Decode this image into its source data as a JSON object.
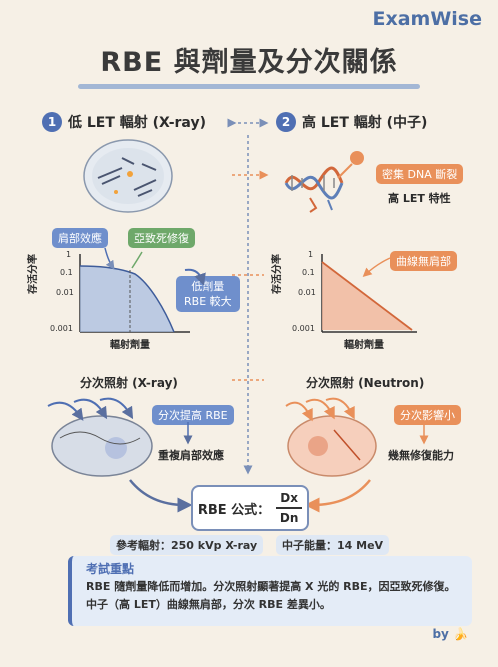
{
  "brand": "ExamWise",
  "title": "RBE 與劑量及分次關係",
  "left_section": {
    "number": "1",
    "heading": "低 LET 輻射 (X-ray)",
    "tag_shoulder": "肩部效應",
    "tag_sublethal": "亞致死修復",
    "tag_result_line1": "低劑量",
    "tag_result_line2": "RBE 較大",
    "chart": {
      "ylabel": "存活分率",
      "xlabel": "輻射劑量",
      "yticks": [
        "1",
        "0.1",
        "0.01",
        "0.001"
      ]
    },
    "fraction_title": "分次照射 (X-ray)",
    "fraction_tag": "分次提高 RBE",
    "fraction_effect": "重複肩部效應"
  },
  "right_section": {
    "number": "2",
    "heading": "高 LET 輻射 (中子)",
    "tag_dna": "密集 DNA 斷裂",
    "tag_characteristic": "高 LET 特性",
    "tag_curve": "曲線無肩部",
    "chart": {
      "ylabel": "存活分率",
      "xlabel": "輻射劑量",
      "yticks": [
        "1",
        "0.1",
        "0.01",
        "0.001"
      ]
    },
    "fraction_title": "分次照射 (Neutron)",
    "fraction_tag": "分次影響小",
    "fraction_effect": "幾無修復能力"
  },
  "formula": {
    "label": "RBE 公式：",
    "numerator": "Dx",
    "denominator": "Dn"
  },
  "reference_left": "參考輻射：250 kVp X-ray",
  "reference_right": "中子能量：14 MeV",
  "exam": {
    "title": "考試重點",
    "body": "RBE 隨劑量降低而增加。分次照射顯著提高 X 光的 RBE，因亞致死修復。中子（高 LET）曲線無肩部，分次 RBE 差異小。"
  },
  "byline": "by 🍌",
  "colors": {
    "blue": "#4f6fb3",
    "orange": "#e9905a",
    "green": "#6ea86a",
    "background": "#f6f0e6"
  }
}
